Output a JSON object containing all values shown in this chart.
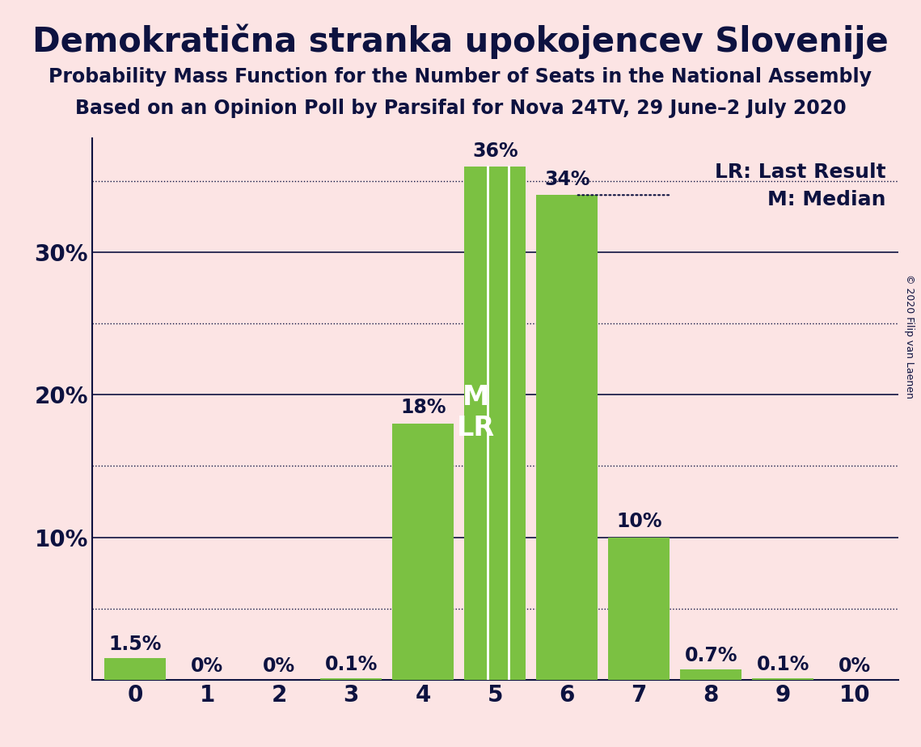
{
  "title": "Demokratična stranka upokojencev Slovenije",
  "subtitle1": "Probability Mass Function for the Number of Seats in the National Assembly",
  "subtitle2": "Based on an Opinion Poll by Parsifal for Nova 24TV, 29 June–2 July 2020",
  "copyright": "© 2020 Filip van Laenen",
  "categories": [
    0,
    1,
    2,
    3,
    4,
    5,
    6,
    7,
    8,
    9,
    10
  ],
  "values": [
    1.5,
    0,
    0,
    0.1,
    18,
    36,
    34,
    10,
    0.7,
    0.1,
    0
  ],
  "bar_color": "#7bc142",
  "bg_color": "#fce4e4",
  "bar_edge_color": "#ffffff",
  "text_color": "#0d1240",
  "label_color_outside": "#0d1240",
  "label_color_inside": "#ffffff",
  "median_seat": 5,
  "last_result_seat": 5,
  "ylim": [
    0,
    38
  ],
  "yticks_solid": [
    10,
    20,
    30
  ],
  "yticks_dotted": [
    5,
    15,
    25,
    35
  ],
  "bar_labels": [
    "1.5%",
    "0%",
    "0%",
    "0.1%",
    "18%",
    "36%",
    "34%",
    "10%",
    "0.7%",
    "0.1%",
    "0%"
  ],
  "label_above_threshold": 10,
  "title_fontsize": 30,
  "subtitle_fontsize": 17,
  "bar_label_fontsize": 17,
  "axis_label_fontsize": 20,
  "legend_fontsize": 18,
  "mlr_fontsize": 24,
  "copyright_fontsize": 9
}
